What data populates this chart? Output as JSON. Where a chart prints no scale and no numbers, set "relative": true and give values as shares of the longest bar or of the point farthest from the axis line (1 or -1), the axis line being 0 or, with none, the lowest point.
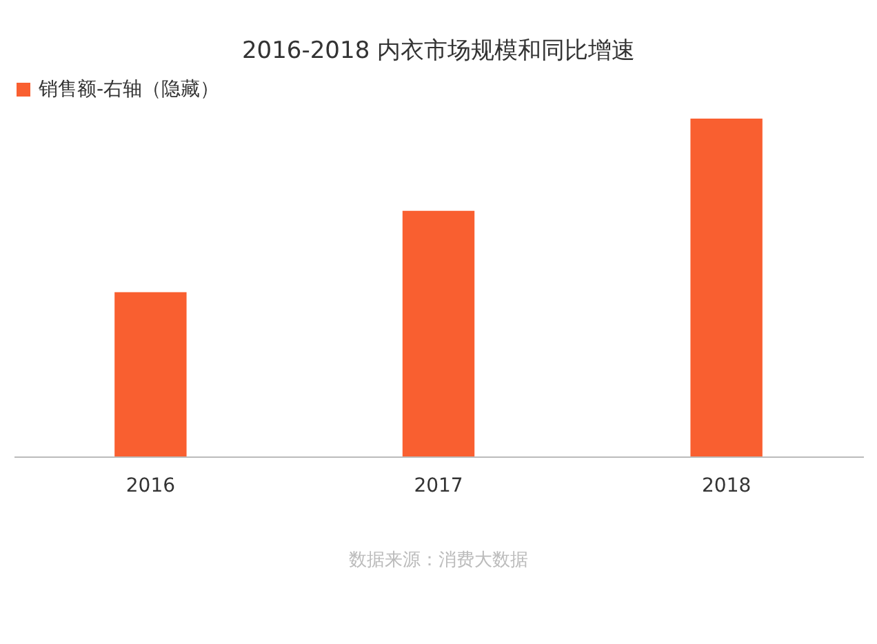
{
  "chart_data": {
    "type": "bar",
    "title": "2016-2018 内衣市场规模和同比增速",
    "categories": [
      "2016",
      "2017",
      "2018"
    ],
    "series": [
      {
        "name": "销售额-右轴（隐藏）",
        "color": "#f95f30",
        "values": [
          0.486,
          0.727,
          1
        ]
      }
    ],
    "relative": true,
    "legend": "top",
    "grid": false,
    "annotations": [
      "数据来源：消费大数据"
    ]
  }
}
